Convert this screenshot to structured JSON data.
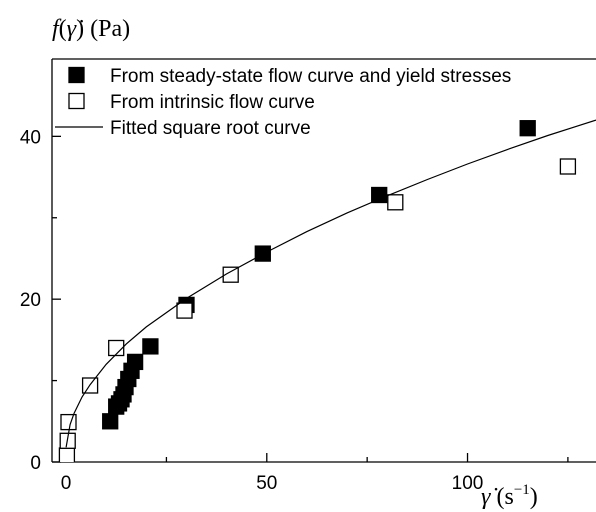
{
  "chart_data": {
    "type": "scatter",
    "ylabel": {
      "func": "f",
      "open_paren": "(",
      "var": "γ̇",
      "close_paren": ")",
      "unit": "(Pa)"
    },
    "xlabel": {
      "var": "γ̇",
      "unit_open": "(s",
      "unit_exp": "−1",
      "unit_close": ")"
    },
    "xlim": [
      -3.5,
      132
    ],
    "ylim": [
      0,
      49.5
    ],
    "x_ticks": [
      0,
      50,
      100
    ],
    "x_minor_ticks": [
      25,
      75,
      125
    ],
    "y_ticks": [
      0,
      20,
      40
    ],
    "y_minor_ticks": [
      10,
      30
    ],
    "grid": false,
    "legend_position": "top",
    "series": [
      {
        "name": "From steady-state flow curve and yield stresses",
        "marker": "filled-square",
        "color": "#000000",
        "points": [
          [
            11,
            5
          ],
          [
            12.5,
            6.8
          ],
          [
            13.2,
            7.2
          ],
          [
            13.8,
            7.7
          ],
          [
            14.3,
            8.3
          ],
          [
            14.8,
            9.2
          ],
          [
            15.5,
            10.2
          ],
          [
            16.3,
            11.2
          ],
          [
            17.2,
            12.3
          ],
          [
            21,
            14.2
          ],
          [
            30,
            19.3
          ],
          [
            49,
            25.6
          ],
          [
            78,
            32.8
          ],
          [
            115,
            41
          ]
        ]
      },
      {
        "name": "From intrinsic flow curve",
        "marker": "open-square",
        "color": "#000000",
        "points": [
          [
            0.2,
            0.8
          ],
          [
            0.4,
            2.6
          ],
          [
            0.6,
            4.9
          ],
          [
            6,
            9.4
          ],
          [
            12.5,
            14
          ],
          [
            29.5,
            18.6
          ],
          [
            41,
            23
          ],
          [
            82,
            31.9
          ],
          [
            125,
            36.3
          ]
        ]
      },
      {
        "name": "Fitted square root curve",
        "marker": "line",
        "color": "#000000",
        "points": [
          [
            0,
            1.8
          ],
          [
            1,
            4.6
          ],
          [
            2,
            6.0
          ],
          [
            4,
            8.0
          ],
          [
            6,
            9.5
          ],
          [
            10,
            12.0
          ],
          [
            15,
            14.5
          ],
          [
            20,
            16.6
          ],
          [
            30,
            20.1
          ],
          [
            40,
            23.1
          ],
          [
            50,
            25.8
          ],
          [
            60,
            28.3
          ],
          [
            70,
            30.6
          ],
          [
            80,
            32.7
          ],
          [
            90,
            34.7
          ],
          [
            100,
            36.6
          ],
          [
            110,
            38.4
          ],
          [
            120,
            40.1
          ],
          [
            132,
            42.0
          ]
        ]
      }
    ]
  }
}
